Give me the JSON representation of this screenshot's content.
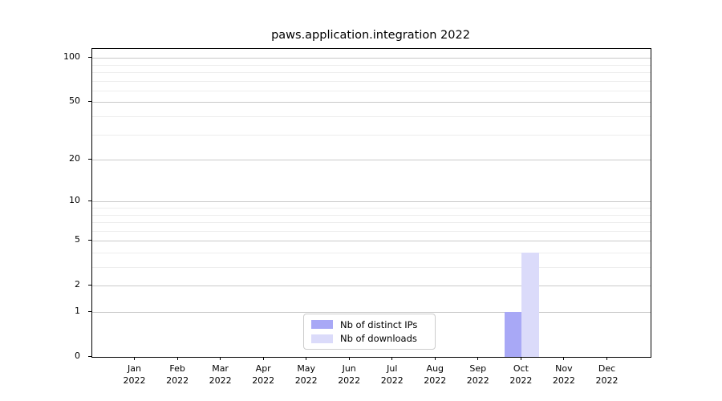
{
  "title": "paws.application.integration 2022",
  "legend": {
    "items": [
      {
        "label": "Nb of distinct IPs",
        "color": "#a8a8f6"
      },
      {
        "label": "Nb of downloads",
        "color": "#dbdbfa"
      }
    ]
  },
  "chart_data": {
    "type": "bar",
    "title": "paws.application.integration 2022",
    "categories": [
      "Jan 2022",
      "Feb 2022",
      "Mar 2022",
      "Apr 2022",
      "May 2022",
      "Jun 2022",
      "Jul 2022",
      "Aug 2022",
      "Sep 2022",
      "Oct 2022",
      "Nov 2022",
      "Dec 2022"
    ],
    "months": [
      "Jan",
      "Feb",
      "Mar",
      "Apr",
      "May",
      "Jun",
      "Jul",
      "Aug",
      "Sep",
      "Oct",
      "Nov",
      "Dec"
    ],
    "year": "2022",
    "series": [
      {
        "name": "Nb of distinct IPs",
        "color": "#a8a8f6",
        "values": [
          0,
          0,
          0,
          0,
          0,
          0,
          0,
          0,
          0,
          1,
          0,
          0
        ]
      },
      {
        "name": "Nb of downloads",
        "color": "#dbdbfa",
        "values": [
          0,
          0,
          0,
          0,
          0,
          0,
          0,
          0,
          0,
          4,
          0,
          0
        ]
      }
    ],
    "yscale": "log1p",
    "ylim": [
      0,
      115
    ],
    "yticks": [
      0,
      1,
      2,
      5,
      10,
      20,
      50,
      100
    ],
    "minor_yticks": [
      3,
      4,
      6,
      7,
      8,
      9,
      30,
      40,
      60,
      70,
      80,
      90
    ],
    "grid": "horizontal",
    "legend_position": "lower-center-inside"
  }
}
